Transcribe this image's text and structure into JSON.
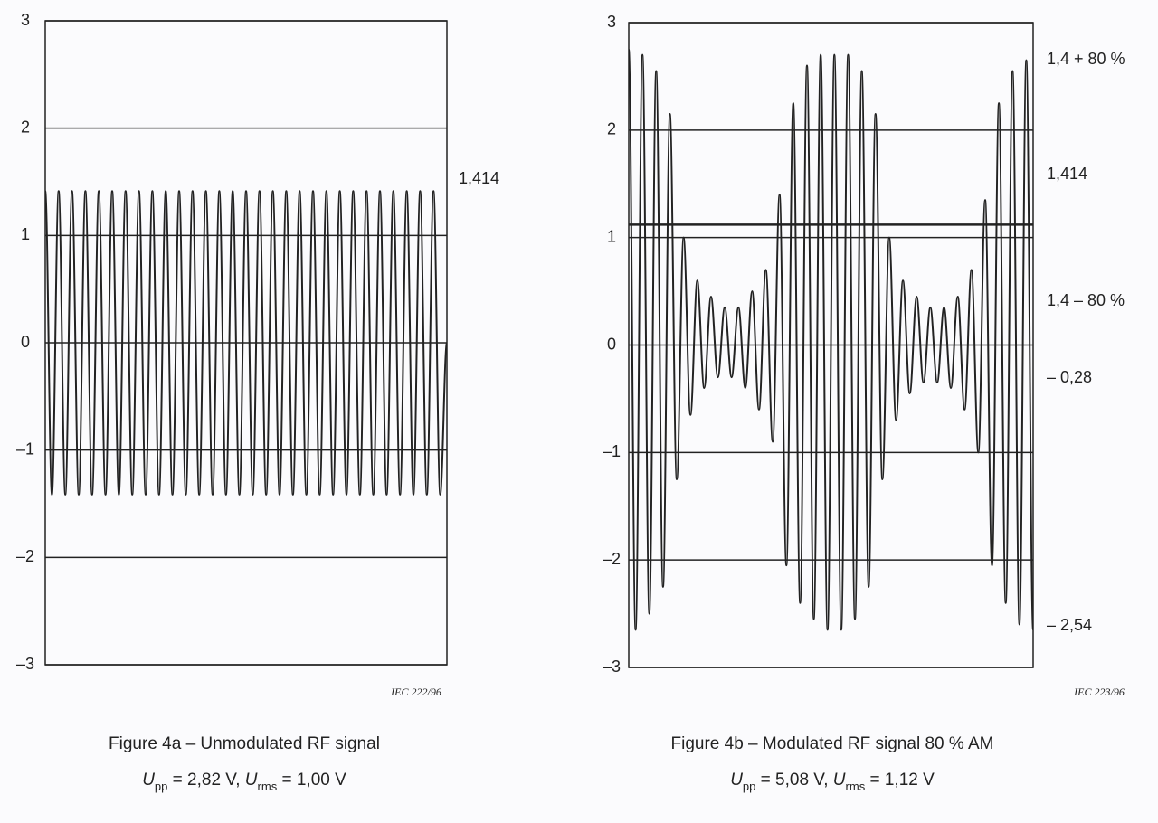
{
  "chart_data": [
    {
      "type": "line",
      "title": "Figure 4a – Unmodulated RF signal",
      "subtitle_parts": [
        "U",
        "pp",
        " = 2,82 V,    ",
        "U",
        "rms",
        " = 1,00 V"
      ],
      "credit": "IEC 222/96",
      "color": "#222222",
      "grid": true,
      "ylim": [
        -3,
        3
      ],
      "yticks": [
        3,
        2,
        1,
        0,
        {
          "value": -1,
          "label": "–1"
        },
        {
          "value": -2,
          "label": "–2"
        },
        {
          "value": -3,
          "label": "–3"
        }
      ],
      "annotations": [
        "1,414"
      ],
      "values": [
        1.414,
        -1.414,
        1.414,
        -1.414,
        1.414,
        -1.414,
        1.414,
        -1.414,
        1.414,
        -1.414,
        1.414,
        -1.414,
        1.414,
        -1.414,
        1.414,
        -1.414,
        1.414,
        -1.414,
        1.414,
        -1.414,
        1.414,
        -1.414,
        1.414,
        -1.414,
        1.414,
        -1.414,
        1.414,
        -1.414,
        1.414,
        -1.414,
        1.414,
        -1.414,
        1.414,
        -1.414,
        1.414,
        -1.414,
        1.414,
        -1.414,
        1.414,
        -1.414,
        1.414,
        -1.414,
        1.414,
        -1.414,
        1.414,
        -1.414,
        1.414,
        -1.414,
        1.414,
        -1.414,
        1.414,
        -1.414,
        1.414,
        -1.414,
        1.414,
        -1.414,
        1.414,
        -1.414,
        1.414,
        -1.414,
        0
      ]
    },
    {
      "type": "line",
      "title": "Figure 4b – Modulated RF signal 80 % AM",
      "subtitle_parts": [
        "U",
        "pp",
        " = 5,08 V,  ",
        "U",
        "rms",
        " = 1,12 V"
      ],
      "credit": "IEC 223/96",
      "color": "#222222",
      "grid": true,
      "ylim": [
        -3,
        3
      ],
      "yticks": [
        3,
        2,
        1,
        0,
        {
          "value": -1,
          "label": "–1"
        },
        {
          "value": -2,
          "label": "–2"
        },
        {
          "value": -3,
          "label": "–3"
        }
      ],
      "reference_lines": [
        1.12
      ],
      "annotations": [
        "1,4 + 80 %",
        "1,414",
        "1,4 – 80 %",
        "– 0,28",
        "– 2,54"
      ],
      "values": [
        2.75,
        -2.65,
        2.7,
        -2.5,
        2.55,
        -2.25,
        2.15,
        -1.25,
        1.0,
        -0.65,
        0.6,
        -0.4,
        0.45,
        -0.3,
        0.35,
        -0.3,
        0.35,
        -0.4,
        0.5,
        -0.6,
        0.7,
        -0.9,
        1.4,
        -2.05,
        2.25,
        -2.4,
        2.6,
        -2.55,
        2.7,
        -2.65,
        2.7,
        -2.65,
        2.7,
        -2.55,
        2.55,
        -2.25,
        2.15,
        -1.25,
        1.0,
        -0.7,
        0.6,
        -0.45,
        0.45,
        -0.35,
        0.35,
        -0.35,
        0.35,
        -0.4,
        0.45,
        -0.6,
        0.7,
        -1.0,
        1.35,
        -2.05,
        2.25,
        -2.4,
        2.55,
        -2.6,
        2.65,
        -2.65
      ]
    }
  ]
}
